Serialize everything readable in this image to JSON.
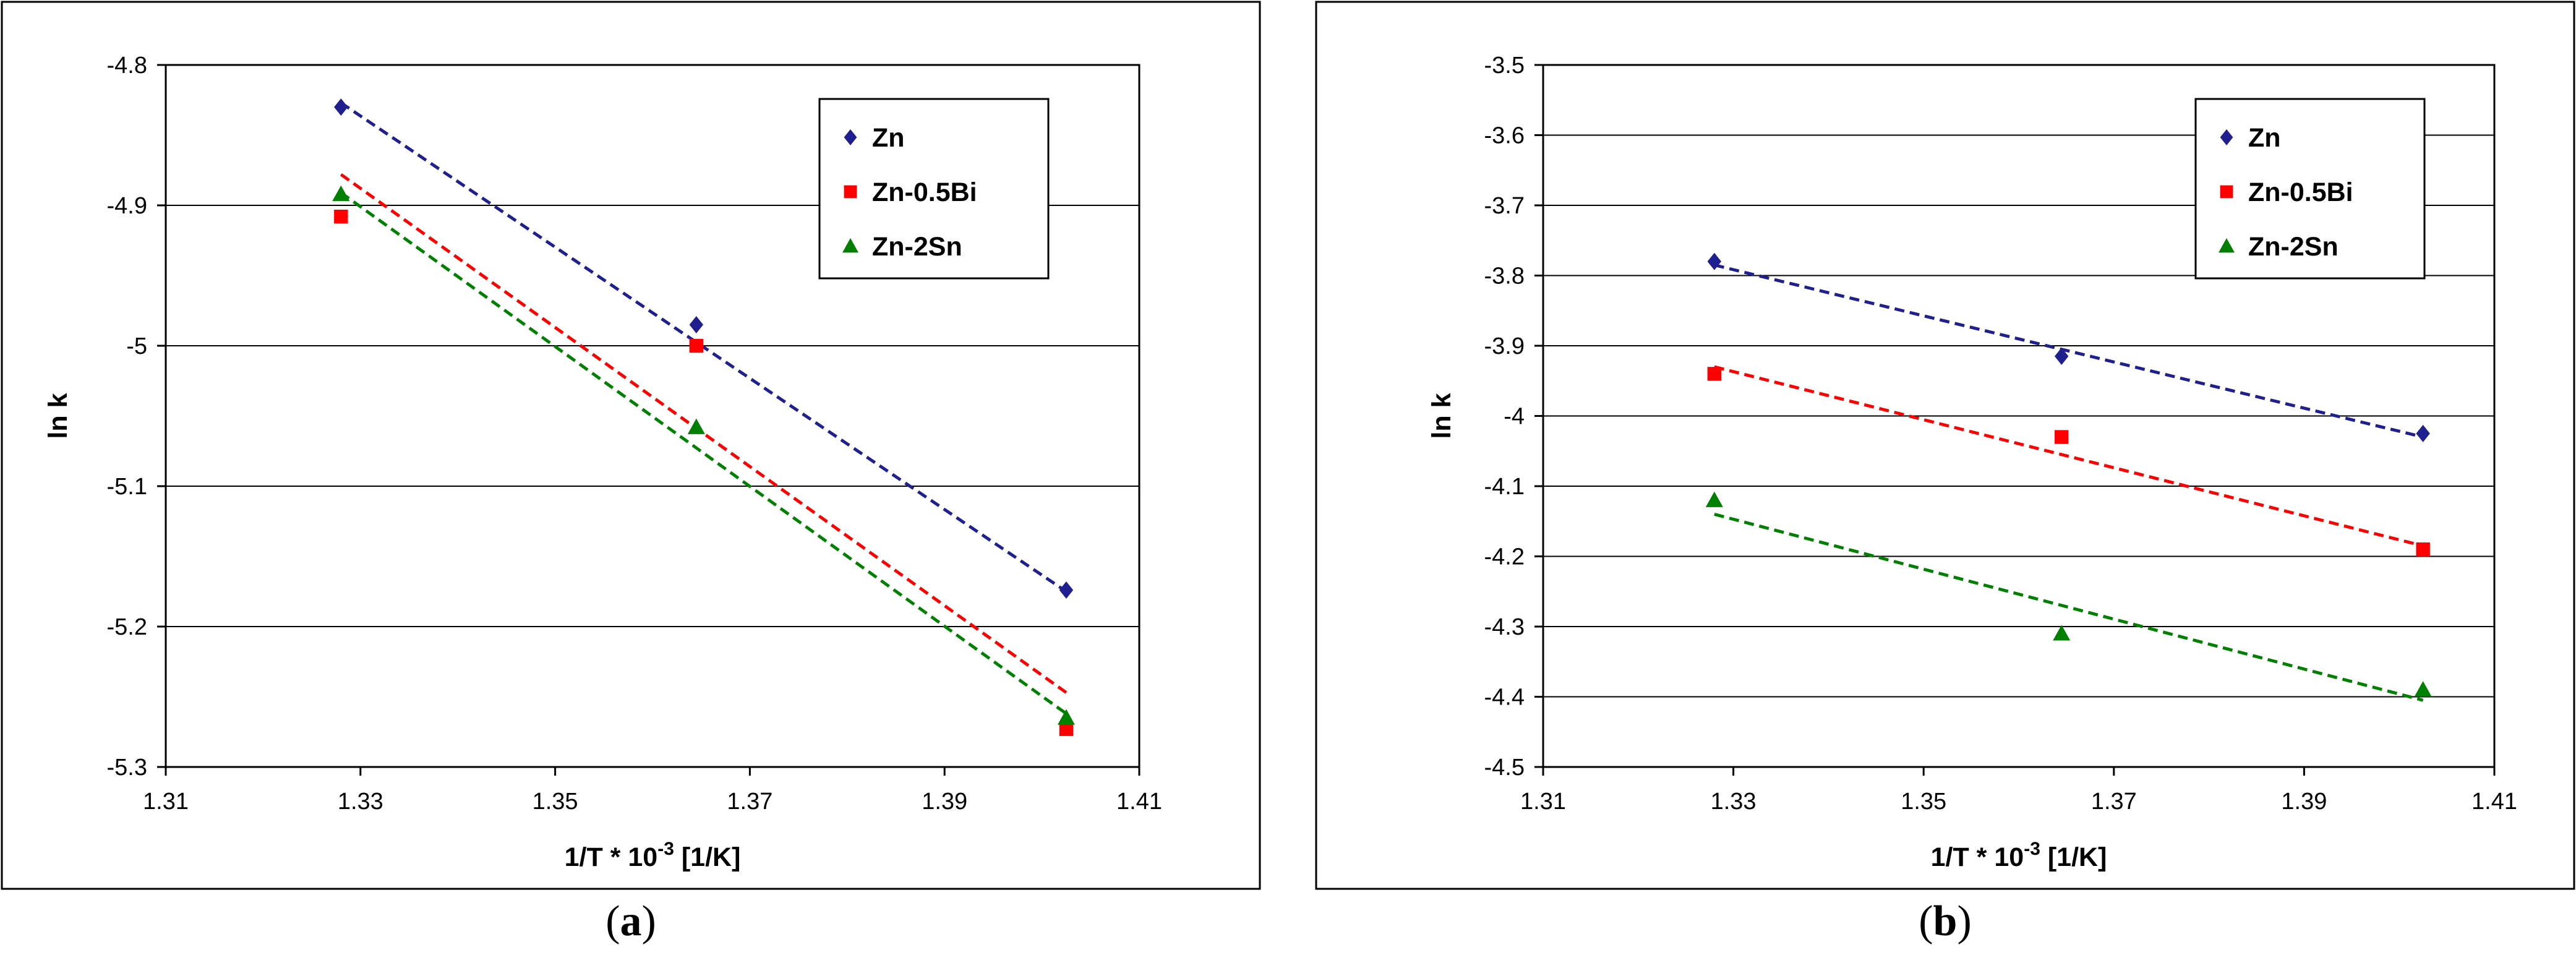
{
  "chart_data": [
    {
      "type": "scatter",
      "panel_label": "a",
      "xlabel_main": "1/T * 10",
      "xlabel_sup": "-3",
      "xlabel_unit": " [1/K]",
      "ylabel": "ln k",
      "xlim": [
        1.31,
        1.41
      ],
      "ylim": [
        -5.3,
        -4.8
      ],
      "xticks": [
        1.31,
        1.33,
        1.35,
        1.37,
        1.39,
        1.41
      ],
      "xtick_labels": [
        "1.31",
        "1.33",
        "1.35",
        "1.37",
        "1.39",
        "1.41"
      ],
      "yticks": [
        -4.8,
        -4.9,
        -5.0,
        -5.1,
        -5.2,
        -5.3
      ],
      "ytick_labels": [
        "-4.8",
        "-4.9",
        "-5",
        "-5.1",
        "-5.2",
        "-5.3"
      ],
      "legend_position": "top-right",
      "series": [
        {
          "name": "Zn",
          "color": "#1f1f8f",
          "marker": "diamond",
          "x": [
            1.328,
            1.3645,
            1.4025
          ],
          "y": [
            -4.83,
            -4.985,
            -5.174
          ],
          "trend": {
            "x": [
              1.328,
              1.4025
            ],
            "y": [
              -4.827,
              -5.175
            ]
          }
        },
        {
          "name": "Zn-0.5Bi",
          "color": "#ff0000",
          "marker": "square",
          "x": [
            1.328,
            1.3645,
            1.4025
          ],
          "y": [
            -4.908,
            -5.0,
            -5.273
          ],
          "trend": {
            "x": [
              1.328,
              1.4025
            ],
            "y": [
              -4.878,
              -5.247
            ]
          }
        },
        {
          "name": "Zn-2Sn",
          "color": "#008000",
          "marker": "triangle",
          "x": [
            1.328,
            1.3645,
            1.4025
          ],
          "y": [
            -4.892,
            -5.058,
            -5.265
          ],
          "trend": {
            "x": [
              1.328,
              1.4025
            ],
            "y": [
              -4.891,
              -5.262
            ]
          }
        }
      ]
    },
    {
      "type": "scatter",
      "panel_label": "b",
      "xlabel_main": "1/T * 10",
      "xlabel_sup": "-3",
      "xlabel_unit": " [1/K]",
      "ylabel": "ln k",
      "xlim": [
        1.31,
        1.41
      ],
      "ylim": [
        -4.5,
        -3.5
      ],
      "xticks": [
        1.31,
        1.33,
        1.35,
        1.37,
        1.39,
        1.41
      ],
      "xtick_labels": [
        "1.31",
        "1.33",
        "1.35",
        "1.37",
        "1.39",
        "1.41"
      ],
      "yticks": [
        -3.5,
        -3.6,
        -3.7,
        -3.8,
        -3.9,
        -4.0,
        -4.1,
        -4.2,
        -4.3,
        -4.4,
        -4.5
      ],
      "ytick_labels": [
        "-3.5",
        "-3.6",
        "-3.7",
        "-3.8",
        "-3.9",
        "-4",
        "-4.1",
        "-4.2",
        "-4.3",
        "-4.4",
        "-4.5"
      ],
      "legend_position": "top-right",
      "series": [
        {
          "name": "Zn",
          "color": "#1f1f8f",
          "marker": "diamond",
          "x": [
            1.328,
            1.3645,
            1.4025
          ],
          "y": [
            -3.78,
            -3.915,
            -4.025
          ],
          "trend": {
            "x": [
              1.328,
              1.4025
            ],
            "y": [
              -3.785,
              -4.03
            ]
          }
        },
        {
          "name": "Zn-0.5Bi",
          "color": "#ff0000",
          "marker": "square",
          "x": [
            1.328,
            1.3645,
            1.4025
          ],
          "y": [
            -3.94,
            -4.03,
            -4.19
          ],
          "trend": {
            "x": [
              1.328,
              1.4025
            ],
            "y": [
              -3.93,
              -4.185
            ]
          }
        },
        {
          "name": "Zn-2Sn",
          "color": "#008000",
          "marker": "triangle",
          "x": [
            1.328,
            1.3645,
            1.4025
          ],
          "y": [
            -4.12,
            -4.31,
            -4.39
          ],
          "trend": {
            "x": [
              1.328,
              1.4025
            ],
            "y": [
              -4.14,
              -4.405
            ]
          }
        }
      ]
    }
  ],
  "captions": [
    {
      "label": "a"
    },
    {
      "label": "b"
    }
  ]
}
